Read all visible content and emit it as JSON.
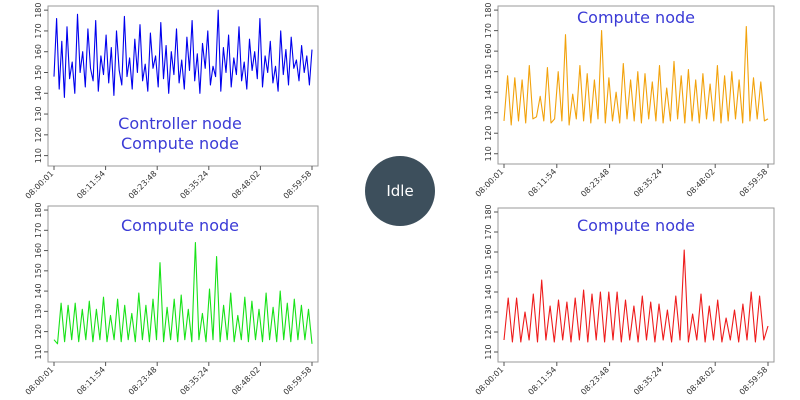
{
  "idle_label": "Idle",
  "chart_data": [
    {
      "type": "line",
      "label_lines": [
        "Controller node",
        "Compute node"
      ],
      "color": "#0000ee",
      "ylim": [
        105,
        182
      ],
      "yticks": [
        110,
        120,
        130,
        140,
        150,
        160,
        170,
        180
      ],
      "xticks": [
        "08:00:01",
        "08:11:54",
        "08:23:48",
        "08:35:24",
        "08:48:02",
        "08:59:58"
      ],
      "grid": false,
      "series": [
        {
          "values": [
            148,
            176,
            142,
            165,
            138,
            172,
            147,
            155,
            140,
            178,
            150,
            160,
            143,
            171,
            152,
            146,
            175,
            141,
            158,
            149,
            168,
            145,
            162,
            139,
            170,
            151,
            144,
            177,
            148,
            157,
            142,
            166,
            150,
            173,
            146,
            154,
            141,
            169,
            152,
            158,
            143,
            174,
            147,
            163,
            140,
            160,
            149,
            171,
            145,
            156,
            142,
            167,
            151,
            175,
            146,
            159,
            140,
            164,
            152,
            170,
            144,
            153,
            148,
            180,
            141,
            162,
            150,
            168,
            143,
            157,
            149,
            172,
            146,
            155,
            142,
            166,
            151,
            160,
            147,
            176,
            143,
            158,
            150,
            165,
            145,
            153,
            141,
            170,
            149,
            161,
            144,
            167,
            152,
            156,
            146,
            163,
            150,
            158,
            144,
            161
          ]
        }
      ]
    },
    {
      "type": "line",
      "label_lines": [
        "Compute node"
      ],
      "color": "#f2a20c",
      "ylim": [
        105,
        182
      ],
      "yticks": [
        110,
        120,
        130,
        140,
        150,
        160,
        170,
        180
      ],
      "xticks": [
        "08:00:01",
        "08:11:54",
        "08:23:48",
        "08:35:24",
        "08:48:02",
        "08:59:58"
      ],
      "grid": false,
      "series": [
        {
          "values": [
            126,
            148,
            124,
            147,
            126,
            146,
            125,
            153,
            127,
            128,
            138,
            126,
            152,
            125,
            127,
            150,
            126,
            168,
            124,
            139,
            127,
            153,
            126,
            149,
            125,
            146,
            127,
            170,
            125,
            147,
            126,
            140,
            125,
            154,
            127,
            146,
            126,
            150,
            125,
            149,
            127,
            145,
            126,
            153,
            125,
            142,
            126,
            155,
            127,
            148,
            125,
            151,
            126,
            146,
            125,
            149,
            127,
            144,
            126,
            153,
            125,
            148,
            126,
            150,
            127,
            146,
            125,
            172,
            126,
            147,
            127,
            145,
            126,
            127
          ]
        }
      ]
    },
    {
      "type": "line",
      "label_lines": [
        "Compute node"
      ],
      "color": "#18e218",
      "ylim": [
        105,
        182
      ],
      "yticks": [
        110,
        120,
        130,
        140,
        150,
        160,
        170,
        180
      ],
      "xticks": [
        "08:00:01",
        "08:11:54",
        "08:23:48",
        "08:35:24",
        "08:48:02",
        "08:59:58"
      ],
      "grid": false,
      "series": [
        {
          "values": [
            116,
            114,
            134,
            115,
            133,
            116,
            134,
            115,
            131,
            116,
            135,
            115,
            131,
            116,
            137,
            115,
            128,
            116,
            136,
            115,
            133,
            116,
            129,
            115,
            139,
            116,
            133,
            115,
            136,
            116,
            154,
            115,
            132,
            116,
            136,
            115,
            138,
            116,
            131,
            115,
            164,
            116,
            129,
            115,
            141,
            116,
            157,
            115,
            133,
            116,
            139,
            115,
            128,
            116,
            137,
            115,
            135,
            116,
            131,
            115,
            139,
            116,
            132,
            115,
            140,
            116,
            134,
            115,
            136,
            116,
            133,
            116,
            131,
            114
          ]
        }
      ]
    },
    {
      "type": "line",
      "label_lines": [
        "Compute node"
      ],
      "color": "#ee1c1c",
      "ylim": [
        105,
        182
      ],
      "yticks": [
        110,
        120,
        130,
        140,
        150,
        160,
        170,
        180
      ],
      "xticks": [
        "08:00:01",
        "08:11:54",
        "08:23:48",
        "08:35:24",
        "08:48:02",
        "08:59:58"
      ],
      "grid": false,
      "series": [
        {
          "values": [
            116,
            137,
            115,
            137,
            115,
            130,
            116,
            139,
            115,
            146,
            116,
            133,
            115,
            136,
            116,
            135,
            115,
            137,
            116,
            141,
            115,
            139,
            116,
            140,
            115,
            140,
            116,
            140,
            115,
            136,
            116,
            133,
            115,
            138,
            116,
            135,
            115,
            134,
            116,
            131,
            115,
            138,
            116,
            161,
            115,
            129,
            116,
            139,
            115,
            133,
            116,
            136,
            115,
            127,
            116,
            131,
            115,
            134,
            116,
            140,
            115,
            138,
            116,
            123
          ]
        }
      ]
    }
  ]
}
